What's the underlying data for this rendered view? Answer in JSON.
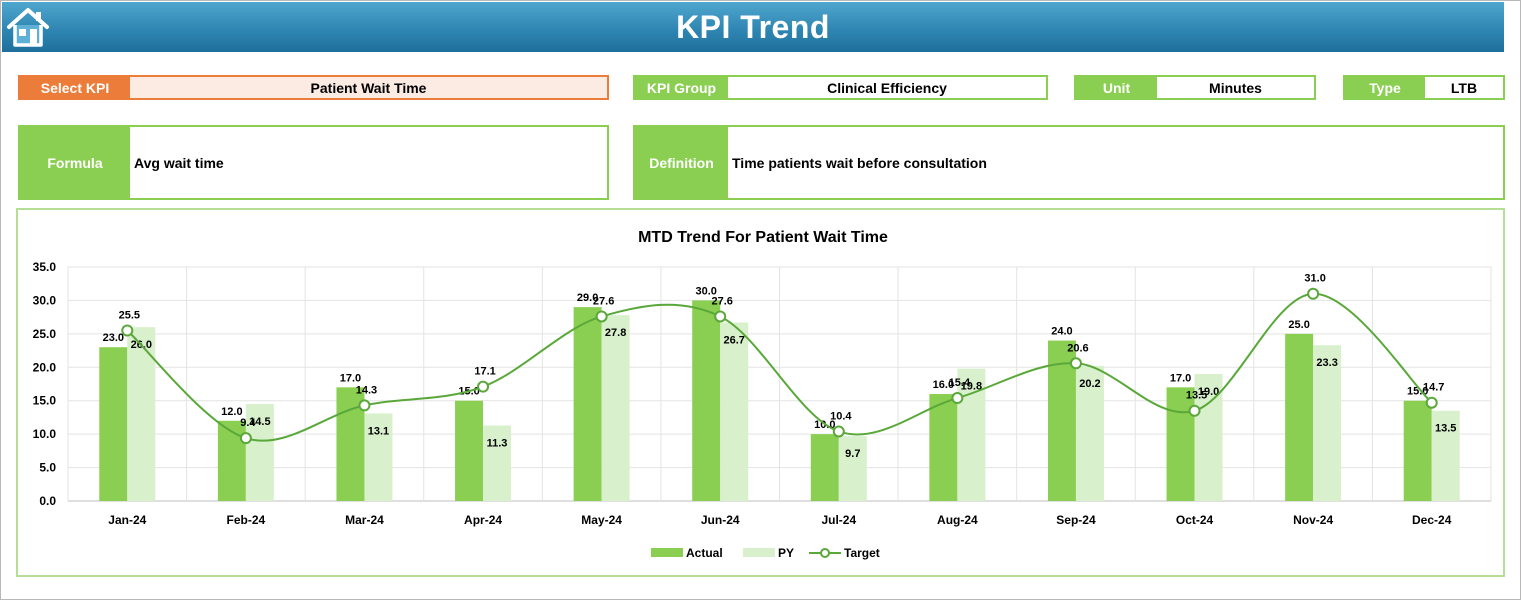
{
  "header": {
    "title": "KPI Trend",
    "home_icon": "home-icon"
  },
  "fields": {
    "select_kpi": {
      "label": "Select KPI",
      "value": "Patient Wait Time"
    },
    "kpi_group": {
      "label": "KPI Group",
      "value": "Clinical Efficiency"
    },
    "unit": {
      "label": "Unit",
      "value": "Minutes"
    },
    "type": {
      "label": "Type",
      "value": "LTB"
    },
    "formula": {
      "label": "Formula",
      "value": "Avg wait time"
    },
    "definition": {
      "label": "Definition",
      "value": "Time patients wait before consultation"
    }
  },
  "colors": {
    "header_blue": "#2f86b2",
    "orange": "#ec7c3a",
    "green": "#8bcf52",
    "actual_bar": "#8bcf52",
    "py_bar": "#d8f0cc",
    "target_line": "#5aa83a"
  },
  "chart_data": {
    "type": "bar",
    "title": "MTD Trend For Patient Wait Time",
    "categories": [
      "Jan-24",
      "Feb-24",
      "Mar-24",
      "Apr-24",
      "May-24",
      "Jun-24",
      "Jul-24",
      "Aug-24",
      "Sep-24",
      "Oct-24",
      "Nov-24",
      "Dec-24"
    ],
    "series": [
      {
        "name": "Actual",
        "type": "bar",
        "values": [
          23.0,
          12.0,
          17.0,
          15.0,
          29.0,
          30.0,
          10.0,
          16.0,
          24.0,
          17.0,
          25.0,
          15.0
        ]
      },
      {
        "name": "PY",
        "type": "bar",
        "values": [
          26.0,
          14.5,
          13.1,
          11.3,
          27.8,
          26.7,
          9.7,
          19.8,
          20.2,
          19.0,
          23.3,
          13.5
        ]
      },
      {
        "name": "Target",
        "type": "line",
        "smooth": true,
        "values": [
          25.5,
          9.4,
          14.3,
          17.1,
          27.6,
          27.6,
          10.4,
          15.4,
          20.6,
          13.5,
          31.0,
          14.7
        ]
      }
    ],
    "ylim": [
      0,
      35
    ],
    "yticks": [
      "0.0",
      "5.0",
      "10.0",
      "15.0",
      "20.0",
      "25.0",
      "30.0",
      "35.0"
    ],
    "grid": true,
    "legend": "bottom"
  }
}
